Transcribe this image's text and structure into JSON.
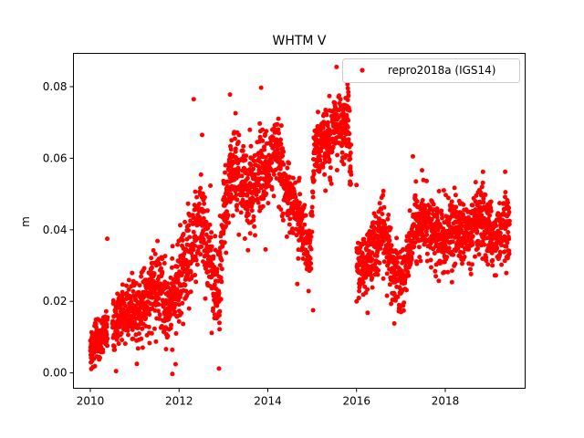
{
  "chart_data": {
    "type": "scatter",
    "title": "WHTM V",
    "xlabel": "",
    "ylabel": "m",
    "xlim": [
      2009.62,
      2019.8
    ],
    "ylim": [
      -0.0043,
      0.0893
    ],
    "xticks": [
      2010,
      2012,
      2014,
      2016,
      2018
    ],
    "xtick_labels": [
      "2010",
      "2012",
      "2014",
      "2016",
      "2018"
    ],
    "yticks": [
      0.0,
      0.02,
      0.04,
      0.06,
      0.08
    ],
    "ytick_labels": [
      "0.00",
      "0.02",
      "0.04",
      "0.06",
      "0.08"
    ],
    "grid": false,
    "legend": {
      "position": "top-right",
      "entries": [
        "repro2018a (IGS14)"
      ]
    },
    "series": [
      {
        "name": "repro2018a (IGS14)",
        "color": "#ff0000",
        "marker": "circle",
        "trend": [
          [
            2010.02,
            0.007
          ],
          [
            2010.2,
            0.01
          ],
          [
            2010.45,
            0.012
          ],
          [
            2010.6,
            0.015
          ],
          [
            2010.9,
            0.018
          ],
          [
            2011.1,
            0.017
          ],
          [
            2011.3,
            0.022
          ],
          [
            2011.55,
            0.024
          ],
          [
            2011.75,
            0.017
          ],
          [
            2011.95,
            0.022
          ],
          [
            2012.1,
            0.03
          ],
          [
            2012.3,
            0.036
          ],
          [
            2012.5,
            0.042
          ],
          [
            2012.75,
            0.03
          ],
          [
            2012.9,
            0.022
          ],
          [
            2013.0,
            0.045
          ],
          [
            2013.2,
            0.057
          ],
          [
            2013.4,
            0.052
          ],
          [
            2013.6,
            0.05
          ],
          [
            2013.8,
            0.055
          ],
          [
            2014.0,
            0.058
          ],
          [
            2014.2,
            0.062
          ],
          [
            2014.4,
            0.053
          ],
          [
            2014.6,
            0.047
          ],
          [
            2014.75,
            0.04
          ],
          [
            2014.95,
            0.03
          ],
          [
            2015.05,
            0.063
          ],
          [
            2015.3,
            0.064
          ],
          [
            2015.5,
            0.07
          ],
          [
            2015.75,
            0.066
          ],
          [
            2015.8,
            0.074
          ],
          [
            2016.0,
            0.03
          ],
          [
            2016.2,
            0.03
          ],
          [
            2016.4,
            0.035
          ],
          [
            2016.6,
            0.04
          ],
          [
            2016.8,
            0.03
          ],
          [
            2016.95,
            0.025
          ],
          [
            2017.1,
            0.028
          ],
          [
            2017.3,
            0.041
          ],
          [
            2017.6,
            0.042
          ],
          [
            2017.9,
            0.037
          ],
          [
            2018.2,
            0.04
          ],
          [
            2018.5,
            0.038
          ],
          [
            2018.8,
            0.042
          ],
          [
            2019.1,
            0.038
          ],
          [
            2019.4,
            0.04
          ]
        ],
        "spread": [
          [
            2010.0,
            0.004
          ],
          [
            2011.0,
            0.006
          ],
          [
            2012.0,
            0.008
          ],
          [
            2013.0,
            0.008
          ],
          [
            2014.0,
            0.007
          ],
          [
            2015.0,
            0.006
          ],
          [
            2016.0,
            0.006
          ],
          [
            2017.0,
            0.006
          ],
          [
            2018.0,
            0.006
          ],
          [
            2019.5,
            0.006
          ]
        ],
        "gaps": [
          [
            2010.39,
            2010.5
          ],
          [
            2015.88,
            2016.0
          ]
        ],
        "range": [
          2010.0,
          2019.45
        ],
        "outliers": [
          [
            2010.38,
            0.0375
          ],
          [
            2012.33,
            0.0765
          ],
          [
            2012.52,
            0.0665
          ],
          [
            2012.9,
            0.0012
          ],
          [
            2011.85,
            -0.0003
          ],
          [
            2013.85,
            0.0797
          ],
          [
            2015.55,
            0.0855
          ],
          [
            2017.27,
            0.0605
          ],
          [
            2016.25,
            0.0168
          ],
          [
            2016.85,
            0.0138
          ],
          [
            2015.02,
            0.0175
          ],
          [
            2010.58,
            0.0005
          ],
          [
            2011.05,
            0.0025
          ],
          [
            2013.15,
            0.0778
          ],
          [
            2018.85,
            0.0562
          ],
          [
            2019.35,
            0.0562
          ],
          [
            2016.0,
            0.0525
          ],
          [
            2017.05,
            0.0188
          ],
          [
            2013.95,
            0.0345
          ]
        ]
      }
    ]
  }
}
